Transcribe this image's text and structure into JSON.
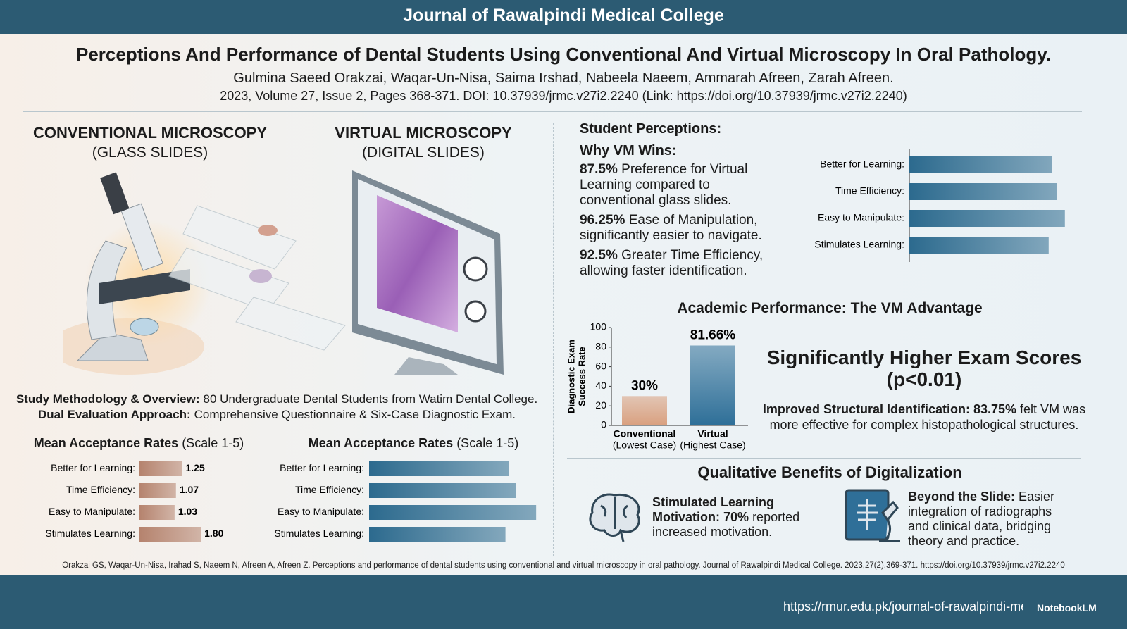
{
  "header": {
    "journal": "Journal of Rawalpindi Medical College",
    "title": "Perceptions And Performance of Dental Students Using Conventional And Virtual Microscopy In Oral Pathology.",
    "authors": "Gulmina Saeed Orakzai, Waqar-Un-Nisa, Saima Irshad, Nabeela Naeem, Ammarah Afreen, Zarah Afreen.",
    "citation": "2023, Volume 27, Issue 2, Pages 368-371. DOI: 10.37939/jrmc.v27i2.2240 (Link: https://doi.org/10.37939/jrmc.v27i2.2240)"
  },
  "comparison": {
    "conventional_heading": "CONVENTIONAL MICROSCOPY",
    "conventional_sub": "(GLASS SLIDES)",
    "virtual_heading": "VIRTUAL MICROSCOPY",
    "virtual_sub": "(DIGITAL SLIDES)"
  },
  "methodology": [
    {
      "label": "Study Methodology & Overview:",
      "text": "80 Undergraduate Dental Students from Watim Dental College."
    },
    {
      "label": "Dual Evaluation Approach:",
      "text": "Comprehensive Questionnaire & Six-Case Diagnostic Exam."
    }
  ],
  "perceptions": {
    "heading": "Student Perceptions:",
    "subheading": "Why VM Wins:",
    "items": [
      {
        "stat": "87.5%",
        "text": "Preference for Virtual Learning compared to conventional glass slides."
      },
      {
        "stat": "96.25%",
        "text": "Ease of Manipulation, significantly easier to navigate."
      },
      {
        "stat": "92.5%",
        "text": "Greater Time Efficiency, allowing faster identification."
      }
    ]
  },
  "performance": {
    "headline": "Significantly Higher Exam Scores",
    "significance": "(p<0.01)",
    "finding_label": "Improved Structural Identification:",
    "finding_stat": "83.75%",
    "finding_text": "felt VM was more effective for complex histopathological structures."
  },
  "qualitative": {
    "heading": "Qualitative Benefits of Digitalization",
    "items": [
      {
        "label": "Stimulated Learning Motivation:",
        "stat": "70%",
        "text": "reported increased motivation."
      },
      {
        "label": "Beyond the Slide:",
        "text": "Easier integration of radiographs and clinical data, bridging theory and practice."
      }
    ]
  },
  "footer": {
    "reference": "Orakzai GS, Waqar-Un-Nisa, Irahad S, Naeem N, Afreen A, Afreen Z. Perceptions and performance of dental students using conventional and virtual microscopy in oral pathology. Journal of Rawalpindi Medical College. 2023,27(2).369-371. https://doi.org/10.37939/jrmc.v27i2.2240",
    "url": "https://rmur.edu.pk/journal-of-rawalpindi-me",
    "watermark": "NotebookLM"
  },
  "chart_data": [
    {
      "type": "bar",
      "orientation": "horizontal",
      "title": "Mean Acceptance Rates",
      "subtitle": "(Scale 1-5)",
      "categories": [
        "Better for Learning:",
        "Time Efficiency:",
        "Easy to Manipulate:",
        "Stimulates Learning:"
      ],
      "values": [
        1.25,
        1.07,
        1.03,
        1.8
      ],
      "value_labels": [
        "1.25",
        "1.07",
        "1.03",
        "1.80"
      ],
      "xlim": [
        0,
        5
      ],
      "color": "#b5836e"
    },
    {
      "type": "bar",
      "orientation": "horizontal",
      "title": "Mean Acceptance Rates",
      "subtitle": "(Scale 1-5)",
      "categories": [
        "Better for Learning:",
        "Time Efficiency:",
        "Easy to Manipulate:",
        "Stimulates Learning:"
      ],
      "values": [
        4.1,
        4.3,
        4.9,
        4.0
      ],
      "xlim": [
        0,
        5
      ],
      "color": "#2c6a8e"
    },
    {
      "type": "bar",
      "orientation": "horizontal",
      "categories": [
        "Better for Learning:",
        "Time Efficiency:",
        "Easy to Manipulate:",
        "Stimulates Learning:"
      ],
      "values": [
        4.4,
        4.55,
        4.8,
        4.3
      ],
      "xlim": [
        0,
        5
      ],
      "color": "#2c6a8e"
    },
    {
      "type": "bar",
      "orientation": "vertical",
      "title": "Academic Performance: The VM Advantage",
      "ylabel": [
        "Diagnostic Exam",
        "Success Rate"
      ],
      "categories": [
        "Conventional",
        "Virtual"
      ],
      "category_notes": [
        "(Lowest Case)",
        "(Highest Case)"
      ],
      "values": [
        30,
        81.66
      ],
      "value_labels": [
        "30%",
        "81.66%"
      ],
      "ylim": [
        0,
        100
      ],
      "yticks": [
        0,
        20,
        40,
        60,
        80,
        100
      ],
      "colors": [
        "#d9a07f",
        "#2e6f98"
      ]
    }
  ]
}
